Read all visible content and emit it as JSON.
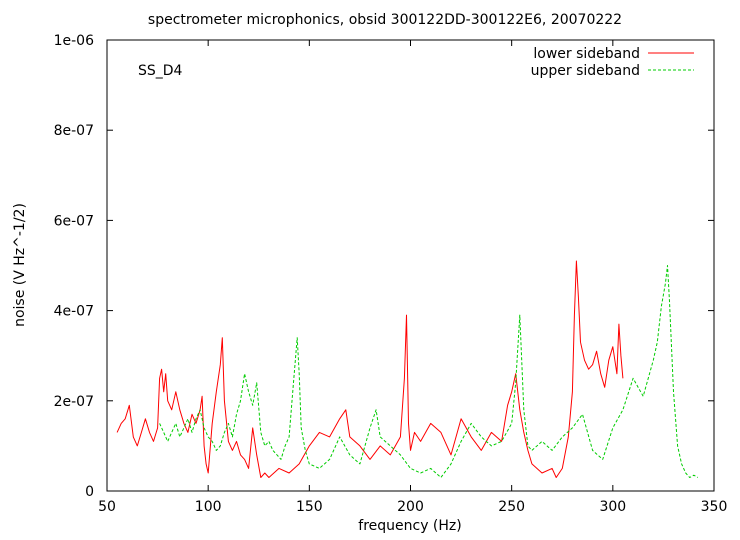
{
  "chart_data": {
    "type": "line",
    "title": "spectrometer microphonics, obsid 300122DD-300122E6, 20070222",
    "xlabel": "frequency (Hz)",
    "ylabel": "noise (V Hz^-1/2)",
    "annotation": "SS_D4",
    "xlim": [
      50,
      350
    ],
    "ylim": [
      0,
      1e-06
    ],
    "x_ticks": [
      50,
      100,
      150,
      200,
      250,
      300,
      350
    ],
    "x_tick_labels": [
      "50",
      "100",
      "150",
      "200",
      "250",
      "300",
      "350"
    ],
    "y_ticks": [
      0,
      2e-07,
      4e-07,
      6e-07,
      8e-07,
      1e-06
    ],
    "y_tick_labels": [
      "0",
      "2e-07",
      "4e-07",
      "6e-07",
      "8e-07",
      "1e-06"
    ],
    "grid": false,
    "legend_position": "top-right",
    "series": [
      {
        "name": "lower sideband",
        "color": "#ff0000",
        "style": "solid",
        "x": [
          55,
          57,
          59,
          61,
          63,
          65,
          67,
          69,
          71,
          73,
          75,
          76,
          77,
          78,
          79,
          80,
          82,
          84,
          86,
          88,
          90,
          92,
          94,
          96,
          97,
          98,
          99,
          100,
          102,
          104,
          106,
          107,
          108,
          110,
          112,
          114,
          116,
          118,
          120,
          122,
          124,
          126,
          128,
          130,
          135,
          140,
          145,
          150,
          155,
          160,
          165,
          168,
          170,
          175,
          180,
          185,
          190,
          195,
          197,
          198,
          199,
          200,
          202,
          205,
          210,
          215,
          220,
          225,
          230,
          235,
          240,
          245,
          248,
          250,
          252,
          254,
          256,
          258,
          260,
          265,
          270,
          272,
          275,
          278,
          280,
          281,
          282,
          283,
          284,
          286,
          288,
          290,
          292,
          294,
          296,
          298,
          300,
          302,
          303,
          304,
          305
        ],
        "y": [
          1.3e-07,
          1.5e-07,
          1.6e-07,
          1.9e-07,
          1.2e-07,
          1e-07,
          1.3e-07,
          1.6e-07,
          1.3e-07,
          1.1e-07,
          1.4e-07,
          2.5e-07,
          2.7e-07,
          2.2e-07,
          2.6e-07,
          2e-07,
          1.8e-07,
          2.2e-07,
          1.8e-07,
          1.5e-07,
          1.3e-07,
          1.7e-07,
          1.5e-07,
          1.8e-07,
          2.1e-07,
          1e-07,
          6e-08,
          4e-08,
          1.5e-07,
          2.2e-07,
          2.8e-07,
          3.4e-07,
          2e-07,
          1.1e-07,
          9e-08,
          1.1e-07,
          8e-08,
          7e-08,
          5e-08,
          1.4e-07,
          8e-08,
          3e-08,
          4e-08,
          3e-08,
          5e-08,
          4e-08,
          6e-08,
          1e-07,
          1.3e-07,
          1.2e-07,
          1.6e-07,
          1.8e-07,
          1.2e-07,
          1e-07,
          7e-08,
          1e-07,
          8e-08,
          1.2e-07,
          2.5e-07,
          3.9e-07,
          1.5e-07,
          9e-08,
          1.3e-07,
          1.1e-07,
          1.5e-07,
          1.3e-07,
          8e-08,
          1.6e-07,
          1.2e-07,
          9e-08,
          1.3e-07,
          1.1e-07,
          1.9e-07,
          2.2e-07,
          2.6e-07,
          1.8e-07,
          1.3e-07,
          9e-08,
          6e-08,
          4e-08,
          5e-08,
          3e-08,
          5e-08,
          1.2e-07,
          2.2e-07,
          3.9e-07,
          5.1e-07,
          4.3e-07,
          3.3e-07,
          2.9e-07,
          2.7e-07,
          2.8e-07,
          3.1e-07,
          2.6e-07,
          2.3e-07,
          2.9e-07,
          3.2e-07,
          2.6e-07,
          3.7e-07,
          3e-07,
          2.5e-07
        ]
      },
      {
        "name": "upper sideband",
        "color": "#00cc00",
        "style": "dashed",
        "x": [
          76,
          78,
          80,
          82,
          84,
          86,
          88,
          90,
          92,
          94,
          96,
          98,
          100,
          102,
          104,
          106,
          108,
          110,
          112,
          114,
          116,
          118,
          120,
          122,
          124,
          126,
          128,
          130,
          132,
          134,
          136,
          138,
          140,
          142,
          144,
          145,
          146,
          148,
          150,
          155,
          160,
          165,
          170,
          175,
          180,
          183,
          185,
          190,
          195,
          200,
          205,
          210,
          215,
          220,
          225,
          230,
          235,
          240,
          245,
          250,
          252,
          254,
          256,
          258,
          260,
          265,
          270,
          275,
          280,
          285,
          290,
          295,
          300,
          305,
          310,
          315,
          320,
          322,
          324,
          326,
          327,
          328,
          330,
          332,
          334,
          336,
          338,
          340,
          342
        ],
        "y": [
          1.5e-07,
          1.3e-07,
          1.1e-07,
          1.3e-07,
          1.5e-07,
          1.2e-07,
          1.4e-07,
          1.6e-07,
          1.3e-07,
          1.6e-07,
          1.8e-07,
          1.4e-07,
          1.2e-07,
          1.1e-07,
          9e-08,
          1e-07,
          1.3e-07,
          1.5e-07,
          1.2e-07,
          1.7e-07,
          2e-07,
          2.6e-07,
          2.2e-07,
          1.9e-07,
          2.4e-07,
          1.3e-07,
          1e-07,
          1.1e-07,
          9e-08,
          8e-08,
          7e-08,
          1e-07,
          1.2e-07,
          2.3e-07,
          3.4e-07,
          2.6e-07,
          1.4e-07,
          9e-08,
          6e-08,
          5e-08,
          7e-08,
          1.2e-07,
          8e-08,
          6e-08,
          1.4e-07,
          1.8e-07,
          1.2e-07,
          1e-07,
          8e-08,
          5e-08,
          4e-08,
          5e-08,
          3e-08,
          6e-08,
          1.1e-07,
          1.5e-07,
          1.2e-07,
          1e-07,
          1.1e-07,
          1.5e-07,
          2.4e-07,
          3.9e-07,
          1.8e-07,
          1e-07,
          9e-08,
          1.1e-07,
          9e-08,
          1.2e-07,
          1.4e-07,
          1.7e-07,
          9e-08,
          7e-08,
          1.4e-07,
          1.8e-07,
          2.5e-07,
          2.1e-07,
          2.9e-07,
          3.3e-07,
          4.1e-07,
          4.6e-07,
          5e-07,
          4.2e-07,
          2.2e-07,
          1e-07,
          6e-08,
          4e-08,
          3e-08,
          3.5e-08,
          3e-08
        ]
      }
    ]
  }
}
